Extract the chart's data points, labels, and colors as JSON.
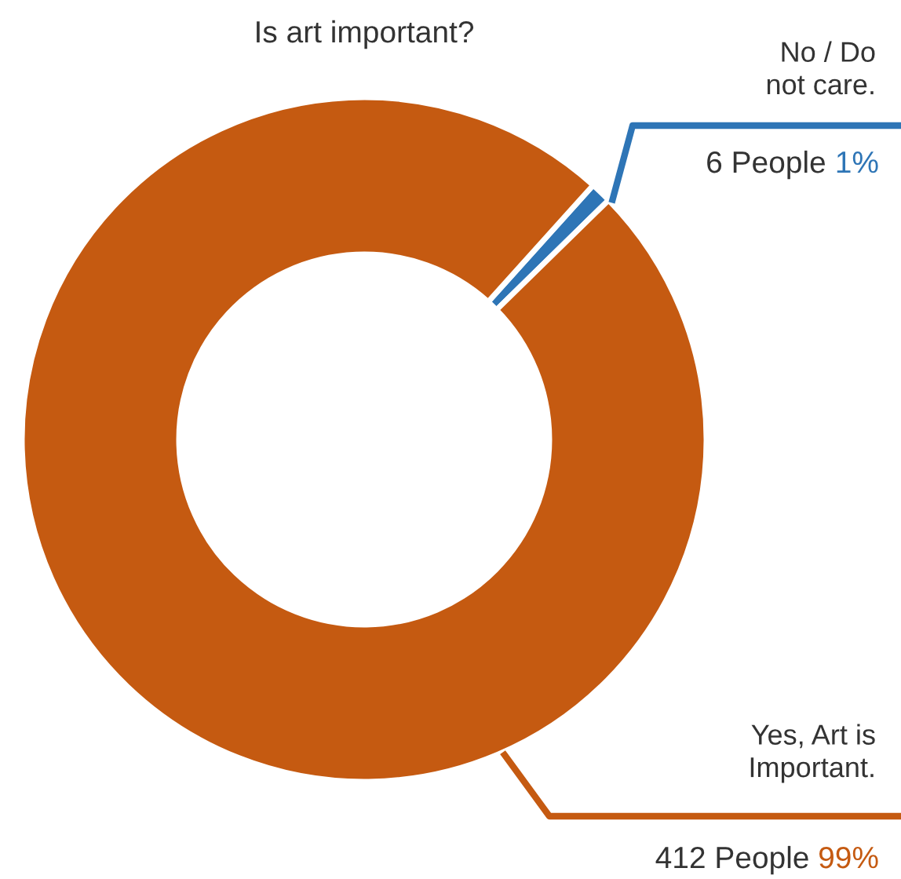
{
  "chart_data": {
    "type": "donut",
    "title": "Is art important?",
    "categories": [
      "No / Do\nnot care.",
      "Yes, Art is\nImportant."
    ],
    "values": [
      1,
      99
    ],
    "colors": [
      "#2e75b6",
      "#c55a11"
    ],
    "value_labels": [
      "6 People 1%",
      "412 People 99%"
    ]
  }
}
